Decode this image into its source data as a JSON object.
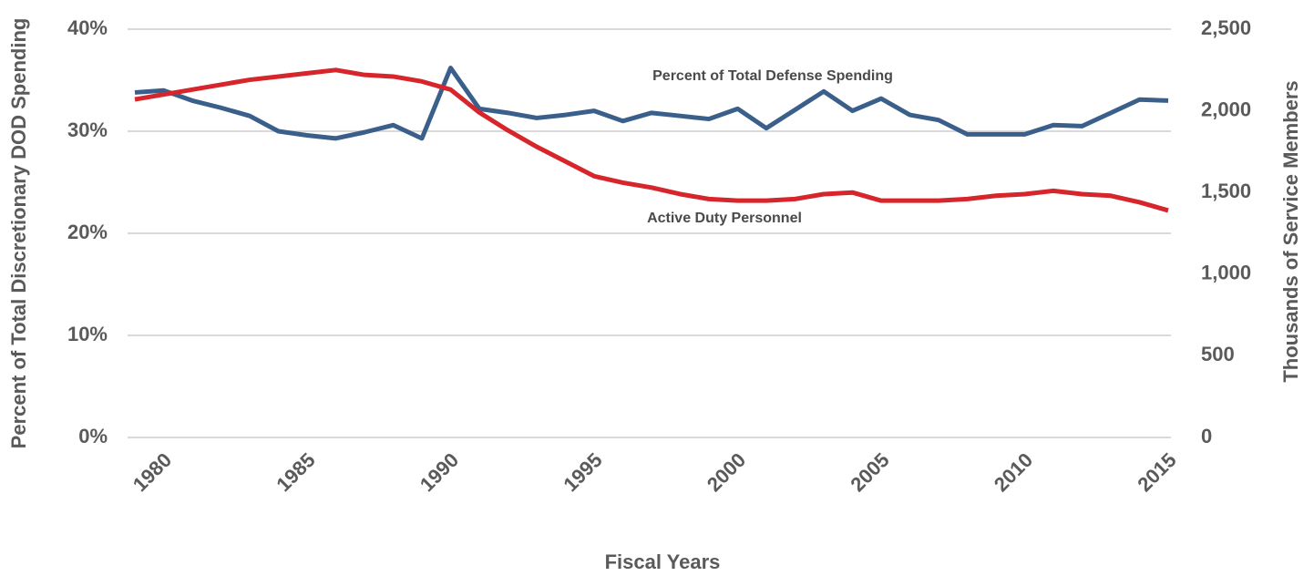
{
  "chart_data": {
    "type": "line",
    "xlabel": "Fiscal Years",
    "ylabel": "Percent of Total Discretionary DOD Spending",
    "y2label": "Thousands of Service Members",
    "annotations": [
      "Percent of Total Defense Spending",
      "Active Duty Personnel"
    ],
    "x": [
      1979,
      1980,
      1981,
      1982,
      1983,
      1984,
      1985,
      1986,
      1987,
      1988,
      1989,
      1990,
      1991,
      1992,
      1993,
      1994,
      1995,
      1996,
      1997,
      1998,
      1999,
      2000,
      2001,
      2002,
      2003,
      2004,
      2005,
      2006,
      2007,
      2008,
      2009,
      2010,
      2011,
      2012,
      2013,
      2014,
      2015
    ],
    "series": [
      {
        "name": "Percent of Total Defense Spending",
        "color": "#3b5f8b",
        "values": [
          33.8,
          34.0,
          33.0,
          32.3,
          31.5,
          30.0,
          29.6,
          29.3,
          29.9,
          30.6,
          29.3,
          36.2,
          32.2,
          31.8,
          31.3,
          31.6,
          32.0,
          31.0,
          31.8,
          31.5,
          31.2,
          32.2,
          30.3,
          32.1,
          33.9,
          32.0,
          33.2,
          31.6,
          31.1,
          29.7,
          29.7,
          29.7,
          30.6,
          30.5,
          31.8,
          33.1,
          33.0
        ]
      },
      {
        "name": "Active Duty Personnel",
        "color": "#d7262b",
        "axis": "y2",
        "values": [
          2070,
          2100,
          2130,
          2160,
          2190,
          2210,
          2230,
          2250,
          2220,
          2210,
          2180,
          2130,
          1990,
          1880,
          1780,
          1690,
          1600,
          1560,
          1530,
          1490,
          1460,
          1450,
          1450,
          1460,
          1490,
          1500,
          1450,
          1450,
          1450,
          1460,
          1480,
          1490,
          1510,
          1490,
          1480,
          1440,
          1390
        ]
      }
    ],
    "xlim": [
      1979,
      2015
    ],
    "xticks": [
      1980,
      1985,
      1990,
      1995,
      2000,
      2005,
      2010,
      2015
    ],
    "ylim": [
      0,
      40
    ],
    "yticks": [
      {
        "value": 0,
        "label": "0%"
      },
      {
        "value": 10,
        "label": "10%"
      },
      {
        "value": 20,
        "label": "20%"
      },
      {
        "value": 30,
        "label": "30%"
      },
      {
        "value": 40,
        "label": "40%"
      }
    ],
    "y2lim": [
      0,
      2500
    ],
    "y2ticks": [
      0,
      500,
      {
        "value": 1000,
        "label": "1,000"
      },
      {
        "value": 1500,
        "label": "1,500"
      },
      {
        "value": 2000,
        "label": "2,000"
      },
      {
        "value": 2500,
        "label": "2,500"
      }
    ],
    "grid": true
  }
}
